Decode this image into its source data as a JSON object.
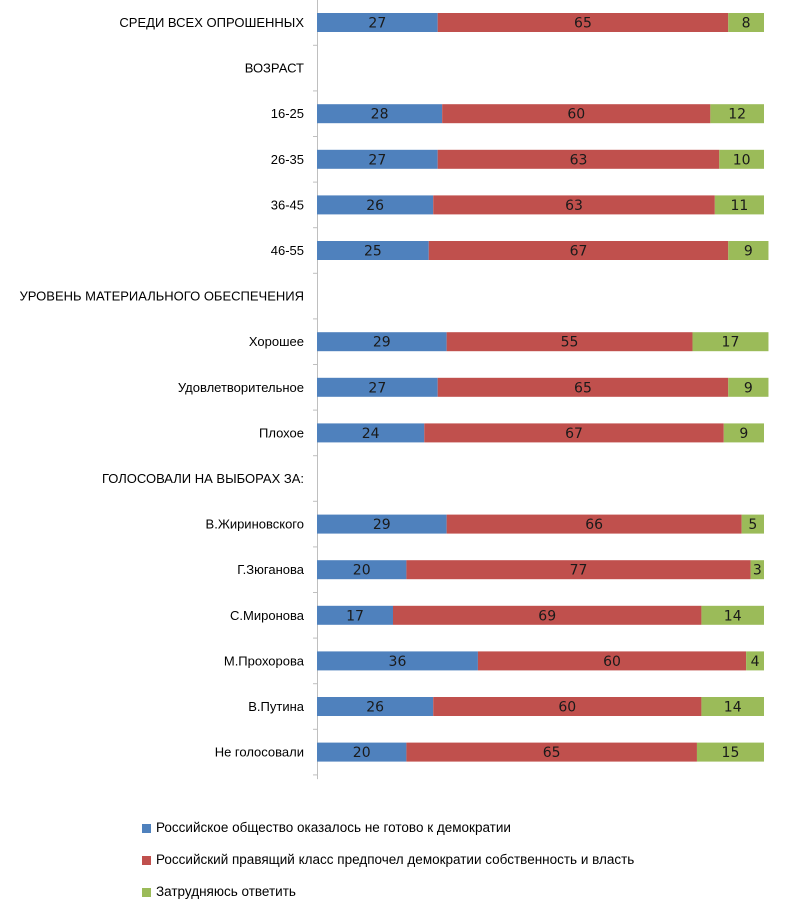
{
  "chart_data": {
    "type": "bar",
    "orientation": "horizontal",
    "stacked": true,
    "xlim": [
      0,
      100
    ],
    "categories": [
      "СРЕДИ ВСЕХ ОПРОШЕННЫХ",
      "ВОЗРАСТ",
      "16-25",
      "26-35",
      "36-45",
      "46-55",
      "УРОВЕНЬ МАТЕРИАЛЬНОГО ОБЕСПЕЧЕНИЯ",
      "Хорошее",
      "Удовлетворительное",
      "Плохое",
      "ГОЛОСОВАЛИ НА ВЫБОРАХ ЗА:",
      "В.Жириновского",
      "Г.Зюганова",
      "С.Миронова",
      "М.Прохорова",
      "В.Путина",
      "Не голосовали"
    ],
    "series": [
      {
        "name": "Российское общество оказалось не готово к демократии",
        "color": "#4f81bd",
        "values": [
          27,
          null,
          28,
          27,
          26,
          25,
          null,
          29,
          27,
          24,
          null,
          29,
          20,
          17,
          36,
          26,
          20
        ]
      },
      {
        "name": "Российский правящий класс предпочел демократии собственность и власть",
        "color": "#c0504d",
        "values": [
          65,
          null,
          60,
          63,
          63,
          67,
          null,
          55,
          65,
          67,
          null,
          66,
          77,
          69,
          60,
          60,
          65
        ]
      },
      {
        "name": "Затрудняюсь ответить",
        "color": "#9bbb59",
        "values": [
          8,
          null,
          12,
          10,
          11,
          9,
          null,
          17,
          9,
          9,
          null,
          5,
          3,
          14,
          4,
          14,
          15
        ]
      }
    ],
    "legend_position": "bottom-left",
    "grid": false
  }
}
